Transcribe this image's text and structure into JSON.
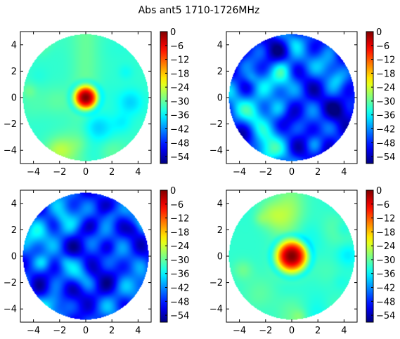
{
  "figure": {
    "title": "Abs ant5 1710-1726MHz"
  },
  "chart_data": [
    {
      "type": "heatmap",
      "panel": "top-left",
      "pattern": "central-hotspot",
      "xlim": [
        -5,
        5
      ],
      "ylim": [
        -5,
        5
      ],
      "xticks": [
        -4,
        -2,
        0,
        2,
        4
      ],
      "yticks": [
        4,
        2,
        0,
        -2,
        -4
      ],
      "valid_region": "disk, radius 4.8",
      "colormap": "jet",
      "color_range": [
        -57,
        0
      ],
      "colorbar_ticks": [
        0,
        -6,
        -12,
        -18,
        -24,
        -30,
        -36,
        -42,
        -48,
        -54
      ],
      "hotspot": {
        "center": [
          0,
          0
        ],
        "peak_db": 0,
        "radius_approx": 0.6
      },
      "background_level_db": -33
    },
    {
      "type": "heatmap",
      "panel": "top-right",
      "pattern": "speckle / lobes",
      "xlim": [
        -5,
        5
      ],
      "ylim": [
        -5,
        5
      ],
      "xticks": [
        -4,
        -2,
        0,
        2,
        4
      ],
      "yticks": [
        4,
        2,
        0,
        -2,
        -4
      ],
      "valid_region": "disk, radius 4.8",
      "colormap": "jet",
      "color_range": [
        -57,
        0
      ],
      "colorbar_ticks": [
        0,
        -6,
        -12,
        -18,
        -24,
        -30,
        -36,
        -42,
        -48,
        -54
      ],
      "background_level_db": -47
    },
    {
      "type": "heatmap",
      "panel": "bottom-left",
      "pattern": "speckle / lobes",
      "xlim": [
        -5,
        5
      ],
      "ylim": [
        -5,
        5
      ],
      "xticks": [
        -4,
        -2,
        0,
        2,
        4
      ],
      "yticks": [
        4,
        2,
        0,
        -2,
        -4
      ],
      "valid_region": "disk, radius 4.8",
      "colormap": "jet",
      "color_range": [
        -57,
        0
      ],
      "colorbar_ticks": [
        0,
        -6,
        -12,
        -18,
        -24,
        -30,
        -36,
        -42,
        -48,
        -54
      ],
      "background_level_db": -46
    },
    {
      "type": "heatmap",
      "panel": "bottom-right",
      "pattern": "central-hotspot",
      "xlim": [
        -5,
        5
      ],
      "ylim": [
        -5,
        5
      ],
      "xticks": [
        -4,
        -2,
        0,
        2,
        4
      ],
      "yticks": [
        4,
        2,
        0,
        -2,
        -4
      ],
      "valid_region": "disk, radius 4.8",
      "colormap": "jet",
      "color_range": [
        -57,
        0
      ],
      "colorbar_ticks": [
        0,
        -6,
        -12,
        -18,
        -24,
        -30,
        -36,
        -42,
        -48,
        -54
      ],
      "hotspot": {
        "center": [
          0,
          0
        ],
        "peak_db": 0,
        "radius_approx": 0.8
      },
      "background_level_db": -33
    }
  ]
}
